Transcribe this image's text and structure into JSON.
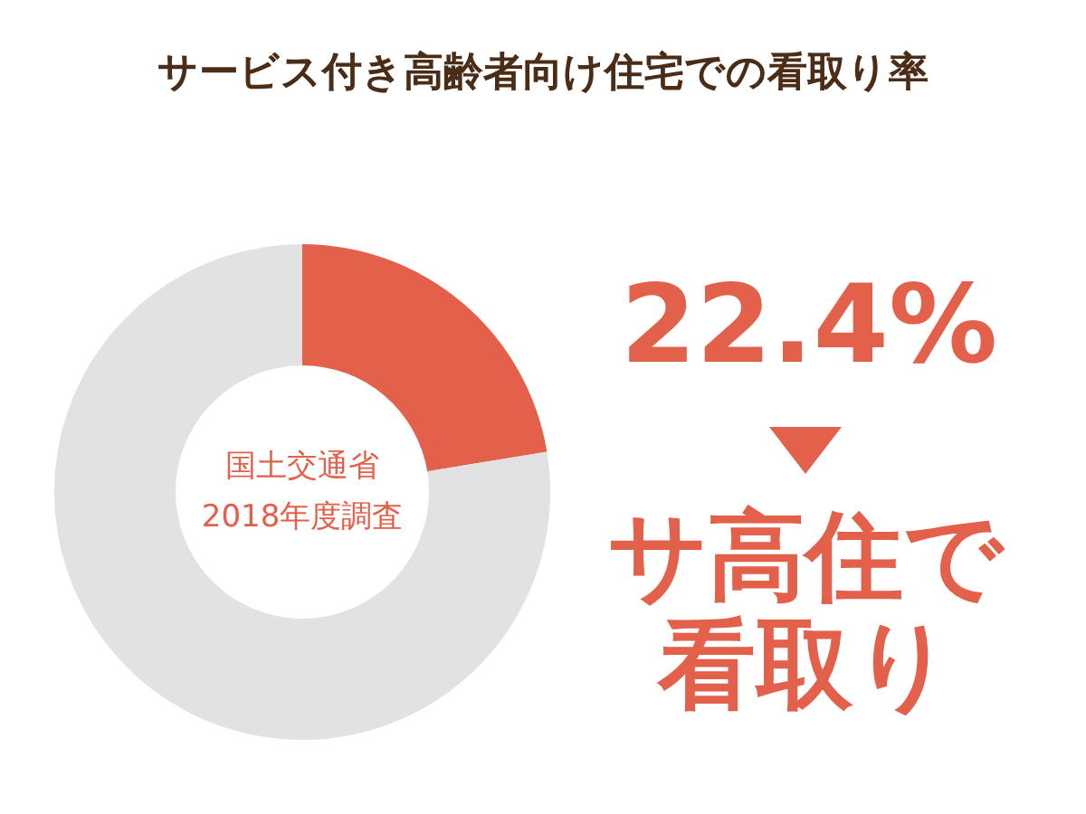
{
  "chart_data": {
    "type": "donut",
    "title": "サービス付き高齢者向け住宅での看取り率",
    "categories": [
      null,
      null
    ],
    "values": [
      22.4,
      77.6
    ],
    "colors": [
      "#e3604a",
      "#e2e2e2"
    ],
    "value_labels": [
      "22.4%",
      null
    ],
    "annotations": [
      "国土交通省",
      "2018年度調査",
      "サ高住で",
      "看取り"
    ]
  }
}
